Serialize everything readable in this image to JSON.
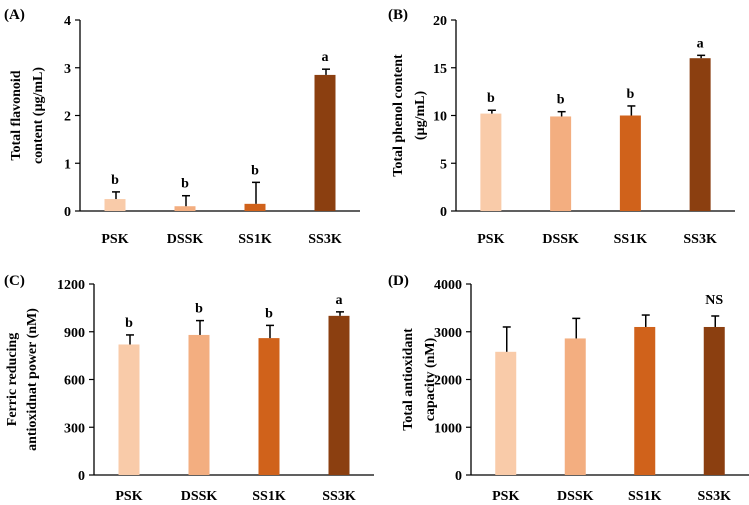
{
  "chart_data": [
    {
      "type": "bar",
      "panel": "(A)",
      "categories": [
        "PSK",
        "DSSK",
        "SS1K",
        "SS3K"
      ],
      "values": [
        0.25,
        0.1,
        0.15,
        2.85
      ],
      "errors": [
        0.15,
        0.22,
        0.45,
        0.12
      ],
      "significance": [
        "b",
        "b",
        "b",
        "a"
      ],
      "colors": [
        "#f9cba9",
        "#f3ae80",
        "#d0621b",
        "#8b3f10"
      ],
      "ylabel_lines": [
        "Total flavonoid",
        "content (µg/mL)"
      ],
      "ylim": [
        0,
        4
      ],
      "yticks": [
        0,
        1,
        2,
        3,
        4
      ]
    },
    {
      "type": "bar",
      "panel": "(B)",
      "categories": [
        "PSK",
        "DSSK",
        "SS1K",
        "SS3K"
      ],
      "values": [
        10.2,
        9.9,
        10.0,
        16.0
      ],
      "errors": [
        0.35,
        0.5,
        1.0,
        0.3
      ],
      "significance": [
        "b",
        "b",
        "b",
        "a"
      ],
      "colors": [
        "#f9cba9",
        "#f3ae80",
        "#d0621b",
        "#8b3f10"
      ],
      "ylabel_lines": [
        "Total phenol content",
        "(µg/mL)"
      ],
      "ylim": [
        0,
        20
      ],
      "yticks": [
        0,
        5,
        10,
        15,
        20
      ]
    },
    {
      "type": "bar",
      "panel": "(C)",
      "categories": [
        "PSK",
        "DSSK",
        "SS1K",
        "SS3K"
      ],
      "values": [
        820,
        880,
        860,
        1000
      ],
      "errors": [
        60,
        90,
        80,
        25
      ],
      "significance": [
        "b",
        "b",
        "b",
        "a"
      ],
      "colors": [
        "#f9cba9",
        "#f3ae80",
        "#d0621b",
        "#8b3f10"
      ],
      "ylabel_lines": [
        "Ferric reducing",
        "antioxidnat power (nM)"
      ],
      "ylim": [
        0,
        1200
      ],
      "yticks": [
        0,
        300,
        600,
        900,
        1200
      ]
    },
    {
      "type": "bar",
      "panel": "(D)",
      "categories": [
        "PSK",
        "DSSK",
        "SS1K",
        "SS3K"
      ],
      "values": [
        2580,
        2860,
        3100,
        3100
      ],
      "errors": [
        520,
        420,
        250,
        230
      ],
      "significance": [
        "",
        "",
        "",
        "NS"
      ],
      "colors": [
        "#f9cba9",
        "#f3ae80",
        "#d0621b",
        "#8b3f10"
      ],
      "ylabel_lines": [
        "Total antioxidant",
        "capacity (nM)"
      ],
      "ylim": [
        0,
        4000
      ],
      "yticks": [
        0,
        1000,
        2000,
        3000,
        4000
      ]
    }
  ]
}
